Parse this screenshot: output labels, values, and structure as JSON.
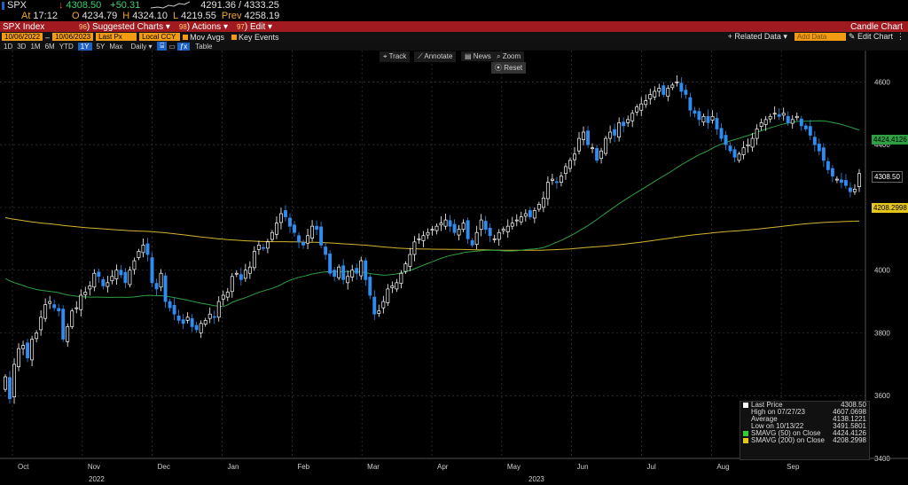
{
  "header": {
    "ticker": "SPX",
    "last": "4308.50",
    "change": "+50.31",
    "range": "4291.36 / 4333.25",
    "at_label": "At",
    "time": "17:12",
    "open_prefix": "O",
    "open": "4234.79",
    "high_prefix": "H",
    "high": "4324.10",
    "low_prefix": "L",
    "low": "4219.55",
    "prev_prefix": "Prev",
    "prev": "4258.19"
  },
  "menubar": {
    "security": "SPX Index",
    "suggested": "Suggested Charts",
    "suggested_num": "96",
    "actions": "Actions",
    "actions_num": "98",
    "edit": "Edit",
    "edit_num": "97",
    "title": "Candle Chart"
  },
  "toolbar2": {
    "start_date": "10/06/2022",
    "end_date": "10/06/2023",
    "last_px": "Last Px",
    "currency": "Local CCY",
    "mov_avgs": "Mov Avgs",
    "key_events": "Key Events",
    "related": "Related Data",
    "add_data": "Add Data",
    "edit_chart": "Edit Chart"
  },
  "periods": [
    "1D",
    "3D",
    "1M",
    "6M",
    "YTD",
    "1Y",
    "5Y",
    "Max"
  ],
  "period_selected": "1Y",
  "frequency": "Daily",
  "table_label": "Table",
  "chart_tools": {
    "track": "Track",
    "annotate": "Annotate",
    "news": "News",
    "zoom": "Zoom",
    "reset": "Reset"
  },
  "price_tags": {
    "sma50": "4424.4126",
    "last": "4308.50",
    "sma200": "4208.2998"
  },
  "legend": {
    "rows": [
      {
        "label": "Last Price",
        "value": "4308.50",
        "color": "#ffffff"
      },
      {
        "label": "High on 07/27/23",
        "value": "4607.0698",
        "color": ""
      },
      {
        "label": "Average",
        "value": "4138.1221",
        "color": ""
      },
      {
        "label": "Low on 10/13/22",
        "value": "3491.5801",
        "color": ""
      },
      {
        "label": "SMAVG (50)  on Close",
        "value": "4424.4126",
        "color": "#33cc33"
      },
      {
        "label": "SMAVG (200)  on Close",
        "value": "4208.2998",
        "color": "#e6c619"
      }
    ]
  },
  "chart_data": {
    "type": "candlestick",
    "ylim": [
      3400,
      4700
    ],
    "yticks": [
      3400,
      3600,
      3800,
      4000,
      4200,
      4400,
      4600
    ],
    "ytick_labels": [
      "3400",
      "3600",
      "3800",
      "4000",
      "4200",
      "4400",
      "4600"
    ],
    "months": [
      "Oct",
      "Nov",
      "Dec",
      "Jan",
      "Feb",
      "Mar",
      "Apr",
      "May",
      "Jun",
      "Jul",
      "Aug",
      "Sep"
    ],
    "years": [
      "2022",
      "2023"
    ],
    "grid": true,
    "colors": {
      "up": "#ffffff",
      "down": "#2f8cf0",
      "sma50": "#2ea043",
      "sma200": "#d4b32f"
    },
    "close": [
      3660,
      3590,
      3700,
      3750,
      3760,
      3720,
      3780,
      3800,
      3850,
      3890,
      3900,
      3880,
      3870,
      3780,
      3820,
      3870,
      3880,
      3920,
      3930,
      3950,
      3990,
      3980,
      3950,
      3960,
      3980,
      4000,
      3985,
      3960,
      4000,
      4030,
      4060,
      4080,
      4050,
      3960,
      3940,
      3990,
      3900,
      3880,
      3860,
      3840,
      3830,
      3850,
      3820,
      3810,
      3830,
      3840,
      3860,
      3850,
      3900,
      3920,
      3930,
      3980,
      3990,
      3970,
      4000,
      4010,
      4060,
      4080,
      4070,
      4090,
      4120,
      4150,
      4180,
      4170,
      4140,
      4120,
      4090,
      4080,
      4110,
      4140,
      4130,
      4080,
      4050,
      3990,
      3980,
      4010,
      3970,
      3980,
      4000,
      3990,
      4030,
      3970,
      3920,
      3860,
      3870,
      3900,
      3940,
      3950,
      3960,
      3990,
      4020,
      4050,
      4090,
      4100,
      4110,
      4120,
      4130,
      4140,
      4150,
      4160,
      4140,
      4120,
      4130,
      4150,
      4100,
      4080,
      4120,
      4160,
      4130,
      4110,
      4100,
      4120,
      4130,
      4140,
      4150,
      4160,
      4170,
      4180,
      4170,
      4190,
      4210,
      4230,
      4280,
      4290,
      4280,
      4300,
      4330,
      4350,
      4370,
      4420,
      4440,
      4400,
      4390,
      4350,
      4380,
      4420,
      4440,
      4430,
      4470,
      4460,
      4480,
      4500,
      4520,
      4530,
      4540,
      4560,
      4570,
      4580,
      4560,
      4580,
      4590,
      4600,
      4570,
      4560,
      4510,
      4500,
      4480,
      4490,
      4470,
      4490,
      4450,
      4420,
      4400,
      4380,
      4360,
      4370,
      4390,
      4400,
      4420,
      4450,
      4470,
      4480,
      4490,
      4500,
      4490,
      4500,
      4470,
      4480,
      4490,
      4460,
      4450,
      4430,
      4400,
      4380,
      4350,
      4320,
      4300,
      4290,
      4280,
      4270,
      4250,
      4258,
      4308
    ]
  }
}
